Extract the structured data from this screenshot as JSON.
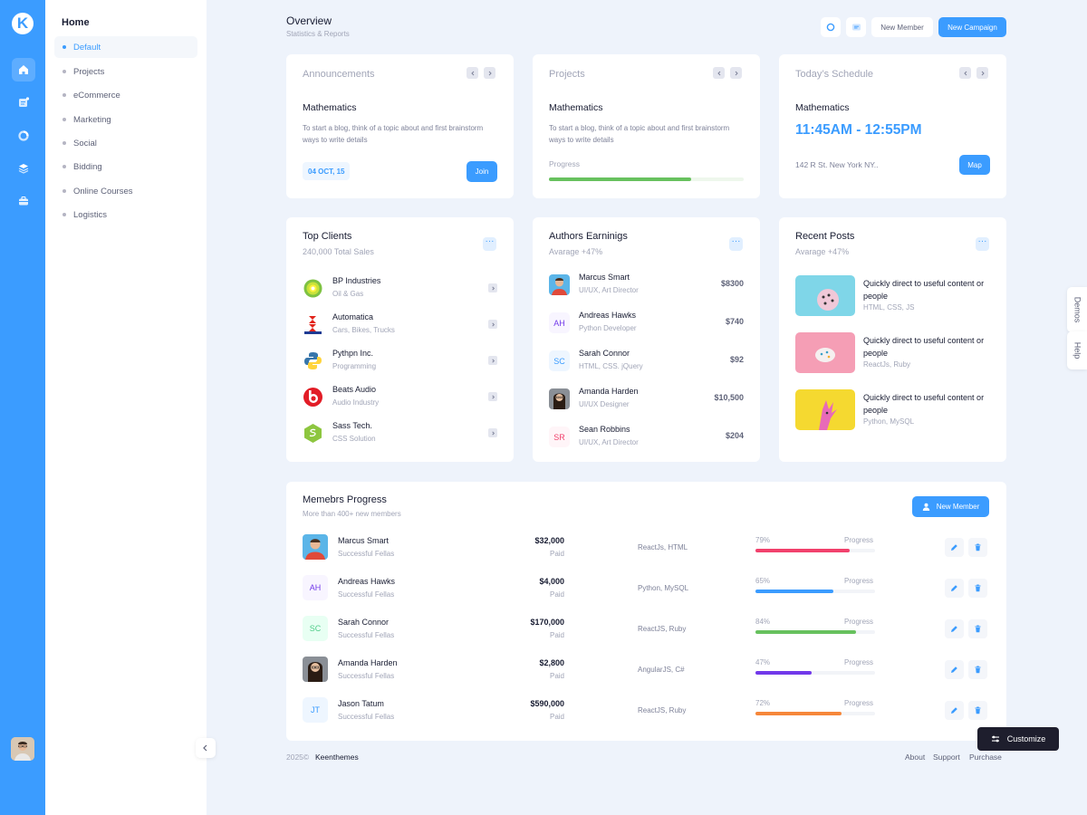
{
  "sidebar": {
    "logo_letter": "K",
    "section_title": "Home",
    "items": [
      {
        "label": "Default"
      },
      {
        "label": "Projects"
      },
      {
        "label": "eCommerce"
      },
      {
        "label": "Marketing"
      },
      {
        "label": "Social"
      },
      {
        "label": "Bidding"
      },
      {
        "label": "Online Courses"
      },
      {
        "label": "Logistics"
      }
    ]
  },
  "header": {
    "title": "Overview",
    "subtitle": "Statistics & Reports",
    "new_member_label": "New Member",
    "new_campaign_label": "New Campaign"
  },
  "announcements": {
    "heading": "Announcements",
    "title": "Mathematics",
    "description": "To start a blog, think of a topic about and first brainstorm ways to write details",
    "date": "04 OCT, 15",
    "join_label": "Join"
  },
  "projects": {
    "heading": "Projects",
    "title": "Mathematics",
    "description": "To start a blog, think of a topic about and first brainstorm ways to write details",
    "progress_label": "Progress",
    "progress_fraction": 0.73
  },
  "schedule": {
    "heading": "Today’s Schedule",
    "title": "Mathematics",
    "time": "11:45AM - 12:55PM",
    "address": "142 R St. New York NY..",
    "map_label": "Map"
  },
  "top_clients": {
    "title": "Top Clients",
    "subtitle": "240,000 Total Sales",
    "items": [
      {
        "name": "BP Industries",
        "desc": "Oil & Gas"
      },
      {
        "name": "Automatica",
        "desc": "Cars, Bikes, Trucks"
      },
      {
        "name": "Pythpn Inc.",
        "desc": "Programming"
      },
      {
        "name": "Beats Audio",
        "desc": "Audio Industry"
      },
      {
        "name": "Sass Tech.",
        "desc": "CSS Solution"
      }
    ]
  },
  "authors": {
    "title": "Authors Earninigs",
    "subtitle": "Avarage +47%",
    "items": [
      {
        "name": "Marcus Smart",
        "role": "UI/UX, Art Director",
        "amount": "$8300",
        "initials": ""
      },
      {
        "name": "Andreas Hawks",
        "role": "Python Developer",
        "amount": "$740",
        "initials": "AH"
      },
      {
        "name": "Sarah Connor",
        "role": "HTML, CSS. jQuery",
        "amount": "$92",
        "initials": "SC"
      },
      {
        "name": "Amanda Harden",
        "role": "UI/UX Designer",
        "amount": "$10,500",
        "initials": ""
      },
      {
        "name": "Sean Robbins",
        "role": "UI/UX, Art Director",
        "amount": "$204",
        "initials": "SR"
      }
    ]
  },
  "recent_posts": {
    "title": "Recent Posts",
    "subtitle": "Avarage +47%",
    "items": [
      {
        "text": "Quickly direct to useful content or people",
        "tags": "HTML, CSS, JS"
      },
      {
        "text": "Quickly direct to useful content or people",
        "tags": "ReactJs, Ruby"
      },
      {
        "text": "Quickly direct to useful content or people",
        "tags": "Python, MySQL"
      }
    ]
  },
  "members": {
    "title": "Memebrs Progress",
    "subtitle": "More than 400+ new members",
    "button_label": "New Member",
    "progress_label": "Progress",
    "paid_label": "Paid",
    "rows": [
      {
        "name": "Marcus Smart",
        "sub": "Successful Fellas",
        "amount": "$32,000",
        "tech": "ReactJs, HTML",
        "pct": "79%",
        "value": 0.79,
        "color": "#f1416c",
        "initials": ""
      },
      {
        "name": "Andreas Hawks",
        "sub": "Successful Fellas",
        "amount": "$4,000",
        "tech": "Python, MySQL",
        "pct": "65%",
        "value": 0.65,
        "color": "#3b9cff",
        "initials": "AH"
      },
      {
        "name": "Sarah Connor",
        "sub": "Successful Fellas",
        "amount": "$170,000",
        "tech": "ReactJS, Ruby",
        "pct": "84%",
        "value": 0.84,
        "color": "#67c15e",
        "initials": "SC"
      },
      {
        "name": "Amanda Harden",
        "sub": "Successful Fellas",
        "amount": "$2,800",
        "tech": "AngularJS, C#",
        "pct": "47%",
        "value": 0.47,
        "color": "#7239ea",
        "initials": ""
      },
      {
        "name": "Jason Tatum",
        "sub": "Successful Fellas",
        "amount": "$590,000",
        "tech": "ReactJS, Ruby",
        "pct": "72%",
        "value": 0.72,
        "color": "#f6873a",
        "initials": "JT"
      }
    ]
  },
  "footer": {
    "year": "2025©",
    "brand": "Keenthemes",
    "links": [
      "About",
      "Support",
      "Purchase"
    ]
  },
  "customize_label": "Customize",
  "side_tabs": [
    "Demos",
    "Help"
  ],
  "colors": {
    "primary": "#3b9cff",
    "dark": "#1e1e2d",
    "success": "#67c15e"
  }
}
